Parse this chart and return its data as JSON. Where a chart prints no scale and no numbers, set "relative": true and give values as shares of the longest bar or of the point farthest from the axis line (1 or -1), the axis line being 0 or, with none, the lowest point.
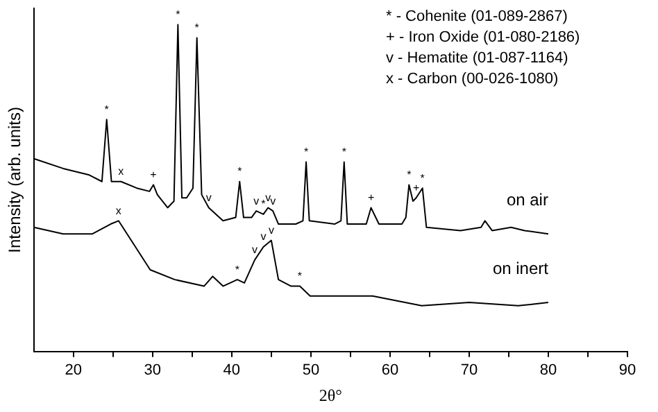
{
  "chart_data": {
    "type": "line",
    "xlabel": "2θ°",
    "ylabel": "Intensity (arb. units)",
    "relative": true,
    "xlim": [
      15,
      90
    ],
    "xticks": [
      20,
      {
        "value": 25,
        "label": null
      },
      30,
      {
        "value": 35,
        "label": null
      },
      40,
      {
        "value": 45,
        "label": null
      },
      50,
      {
        "value": 55,
        "label": null
      },
      60,
      {
        "value": 65,
        "label": null
      },
      70,
      {
        "value": 75,
        "label": null
      },
      80,
      {
        "value": 85,
        "label": null
      },
      90
    ],
    "grid": false,
    "legend": false,
    "marker": "none",
    "line_style": "solid",
    "series": [
      {
        "name": "on air",
        "color": "#000000",
        "x": [
          15,
          18.7,
          22,
          23.6,
          24.2,
          24.8,
          26,
          28,
          29.6,
          30.1,
          30.6,
          31.9,
          32.7,
          33.2,
          33.7,
          34.3,
          35.1,
          35.6,
          36.2,
          37.1,
          38.9,
          40.5,
          41.0,
          41.5,
          42.5,
          43.1,
          44,
          44.6,
          45.2,
          45.9,
          48.1,
          49.0,
          49.4,
          49.8,
          53,
          53.8,
          54.2,
          54.6,
          57,
          57.6,
          58.6,
          61.5,
          62.0,
          62.4,
          62.9,
          63.3,
          64.1,
          64.6,
          68.9,
          71.5,
          72,
          72.9,
          75.3,
          77,
          80
        ],
        "values": [
          0.59,
          0.56,
          0.54,
          0.52,
          0.71,
          0.52,
          0.52,
          0.5,
          0.49,
          0.51,
          0.48,
          0.44,
          0.46,
          1,
          0.47,
          0.47,
          0.5,
          0.96,
          0.48,
          0.44,
          0.4,
          0.41,
          0.52,
          0.41,
          0.41,
          0.43,
          0.42,
          0.44,
          0.43,
          0.39,
          0.39,
          0.4,
          0.58,
          0.4,
          0.39,
          0.4,
          0.58,
          0.39,
          0.39,
          0.44,
          0.39,
          0.39,
          0.41,
          0.51,
          0.46,
          0.47,
          0.5,
          0.38,
          0.37,
          0.38,
          0.4,
          0.37,
          0.38,
          0.37,
          0.36
        ]
      },
      {
        "name": "on inert",
        "color": "#000000",
        "x": [
          15,
          18.7,
          22.4,
          24.7,
          25.7,
          27.3,
          29.7,
          32.8,
          36.5,
          37.6,
          38.9,
          40.7,
          41.6,
          42.9,
          44,
          45,
          45.9,
          47.5,
          48.6,
          49.9,
          53,
          57.8,
          64,
          70,
          76.2,
          80
        ],
        "values": [
          0.38,
          0.36,
          0.36,
          0.39,
          0.4,
          0.34,
          0.25,
          0.22,
          0.2,
          0.23,
          0.2,
          0.22,
          0.21,
          0.28,
          0.32,
          0.34,
          0.22,
          0.2,
          0.2,
          0.17,
          0.17,
          0.17,
          0.14,
          0.15,
          0.14,
          0.15
        ]
      }
    ],
    "annotations": [
      "* - Cohenite (01-089-2867)",
      "+ - Iron Oxide (01-080-2186)",
      "v - Hematite (01-087-1164)",
      "x - Carbon (00-026-1080)",
      {
        "text": "*",
        "x": 24.2,
        "y": 0.71
      },
      {
        "text": "x",
        "x": 26,
        "y": 0.52
      },
      {
        "text": "+",
        "x": 30.1,
        "y": 0.51
      },
      {
        "text": "*",
        "x": 33.2,
        "y": 1
      },
      {
        "text": "*",
        "x": 35.6,
        "y": 0.96
      },
      {
        "text": "v",
        "x": 37.1,
        "y": 0.44
      },
      {
        "text": "*",
        "x": 41.0,
        "y": 0.52
      },
      {
        "text": "v",
        "x": 43.1,
        "y": 0.43
      },
      {
        "text": "*",
        "x": 44,
        "y": 0.42
      },
      {
        "text": "v",
        "x": 44.6,
        "y": 0.44
      },
      {
        "text": "v",
        "x": 45.2,
        "y": 0.43
      },
      {
        "text": "*",
        "x": 49.4,
        "y": 0.58
      },
      {
        "text": "*",
        "x": 54.2,
        "y": 0.58
      },
      {
        "text": "+",
        "x": 57.6,
        "y": 0.44
      },
      {
        "text": "*",
        "x": 62.4,
        "y": 0.51
      },
      {
        "text": "+",
        "x": 63.3,
        "y": 0.47
      },
      {
        "text": "*",
        "x": 64.1,
        "y": 0.5
      },
      {
        "text": "x",
        "x": 25.7,
        "y": 0.4
      },
      {
        "text": "*",
        "x": 40.7,
        "y": 0.22
      },
      {
        "text": "v",
        "x": 42.9,
        "y": 0.28
      },
      {
        "text": "v",
        "x": 44,
        "y": 0.32
      },
      {
        "text": "v",
        "x": 45,
        "y": 0.34
      },
      {
        "text": "*",
        "x": 48.6,
        "y": 0.2
      }
    ]
  }
}
